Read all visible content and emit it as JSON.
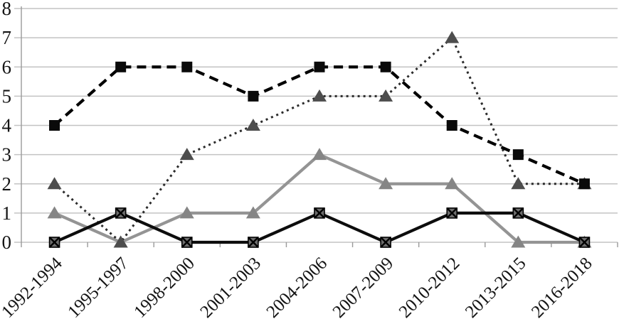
{
  "chart_data": {
    "type": "line",
    "title": "",
    "xlabel": "",
    "ylabel": "",
    "categories": [
      "1992-1994",
      "1995-1997",
      "1998-2000",
      "2001-2003",
      "2004-2006",
      "2007-2009",
      "2010-2012",
      "2013-2015",
      "2016-2018"
    ],
    "series": [
      {
        "name": "dashed-black-squares",
        "values": [
          4,
          6,
          6,
          5,
          6,
          6,
          4,
          3,
          2
        ],
        "line_style": "dashed",
        "marker": "square",
        "line_color": "#000000",
        "marker_color": "#0a0a0a"
      },
      {
        "name": "dotted-dark-gray-triangles",
        "values": [
          2,
          0,
          3,
          4,
          5,
          5,
          7,
          2,
          2
        ],
        "line_style": "dotted",
        "marker": "triangle",
        "line_color": "#2b2b2b",
        "marker_color": "#4d4d4d"
      },
      {
        "name": "solid-gray-triangles",
        "values": [
          1,
          0,
          1,
          1,
          3,
          2,
          2,
          0,
          0
        ],
        "line_style": "solid",
        "marker": "triangle",
        "line_color": "#949494",
        "marker_color": "#858585"
      },
      {
        "name": "solid-black-x-squares",
        "values": [
          0,
          1,
          0,
          0,
          1,
          0,
          1,
          1,
          0
        ],
        "line_style": "solid",
        "marker": "x-square",
        "line_color": "#0d0d0d",
        "marker_color": "#6e6e6e"
      }
    ],
    "ylim": [
      0,
      8
    ],
    "yticks": [
      0,
      1,
      2,
      3,
      4,
      5,
      6,
      7,
      8
    ],
    "grid": true,
    "legend_position": "none",
    "gridline_color": "#c3c3c3",
    "axis_color": "#9a9a9a",
    "tick_label_color": "#141414"
  }
}
